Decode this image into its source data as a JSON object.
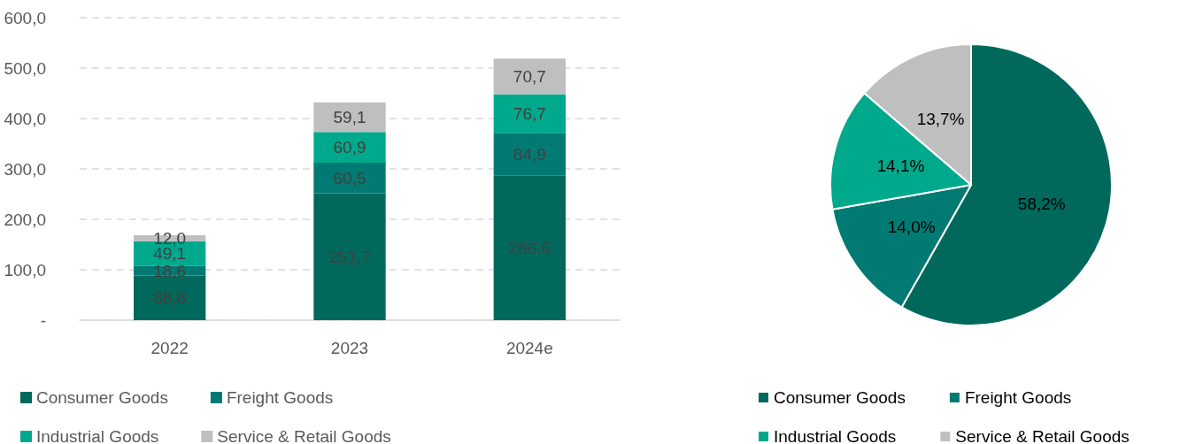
{
  "chart_data": [
    {
      "type": "bar",
      "stacked": true,
      "categories": [
        "2022",
        "2023",
        "2024e"
      ],
      "series": [
        {
          "name": "Consumer Goods",
          "color": "#00695c",
          "values": [
            88.8,
            251.7,
            286.6
          ],
          "value_labels": [
            "88,8",
            "251,7",
            "286,6"
          ]
        },
        {
          "name": "Freight Goods",
          "color": "#007a72",
          "values": [
            18.6,
            60.5,
            84.9
          ],
          "value_labels": [
            "18,6",
            "60,5",
            "84,9"
          ]
        },
        {
          "name": "Industrial Goods",
          "color": "#00a98c",
          "values": [
            49.1,
            60.9,
            76.7
          ],
          "value_labels": [
            "49,1",
            "60,9",
            "76,7"
          ]
        },
        {
          "name": "Service & Retail Goods",
          "color": "#bfbfbf",
          "values": [
            12.0,
            59.1,
            70.7
          ],
          "value_labels": [
            "12,0",
            "59,1",
            "70,7"
          ]
        }
      ],
      "ylim": [
        0,
        600
      ],
      "yticks": [
        {
          "value": 0,
          "label": "-"
        },
        {
          "value": 100,
          "label": "100,0"
        },
        {
          "value": 200,
          "label": "200,0"
        },
        {
          "value": 300,
          "label": "300,0"
        },
        {
          "value": 400,
          "label": "400,0"
        },
        {
          "value": 500,
          "label": "500,0"
        },
        {
          "value": 600,
          "label": "600,0"
        }
      ],
      "grid": "y",
      "legend": "bottom"
    },
    {
      "type": "pie",
      "categories": [
        "Consumer Goods",
        "Freight Goods",
        "Industrial Goods",
        "Service & Retail Goods"
      ],
      "values": [
        58.2,
        14.0,
        14.1,
        13.7
      ],
      "value_labels": [
        "58,2%",
        "14,0%",
        "14,1%",
        "13,7%"
      ],
      "colors": [
        "#00695c",
        "#007a72",
        "#00a98c",
        "#bfbfbf"
      ],
      "legend": "bottom"
    }
  ]
}
